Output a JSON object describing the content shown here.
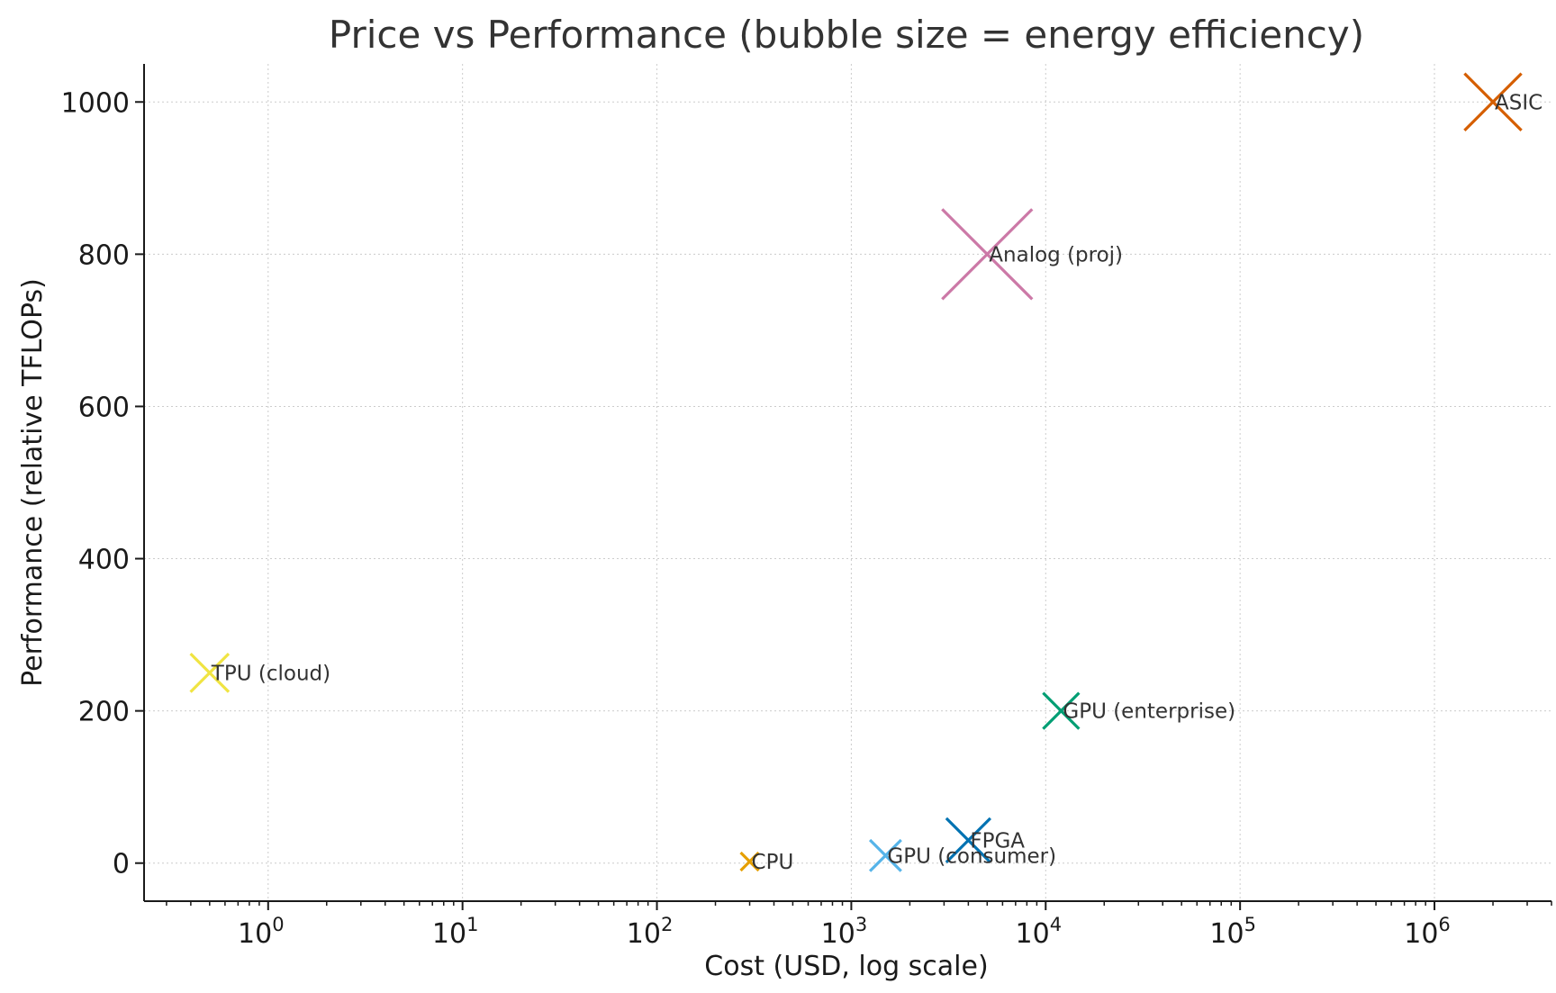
{
  "chart_data": {
    "type": "scatter",
    "title": "Price vs Performance (bubble size = energy efficiency)",
    "xlabel": "Cost (USD, log scale)",
    "ylabel": "Performance (relative TFLOPs)",
    "xscale": "log",
    "xlim": [
      0.23,
      4000000
    ],
    "ylim": [
      -50,
      1050
    ],
    "x_ticks": [
      {
        "base": "10",
        "exp": "0",
        "value": 1
      },
      {
        "base": "10",
        "exp": "1",
        "value": 10
      },
      {
        "base": "10",
        "exp": "2",
        "value": 100
      },
      {
        "base": "10",
        "exp": "3",
        "value": 1000
      },
      {
        "base": "10",
        "exp": "4",
        "value": 10000
      },
      {
        "base": "10",
        "exp": "5",
        "value": 100000
      },
      {
        "base": "10",
        "exp": "6",
        "value": 1000000
      }
    ],
    "y_ticks": [
      {
        "label": "0",
        "value": 0
      },
      {
        "label": "200",
        "value": 200
      },
      {
        "label": "400",
        "value": 400
      },
      {
        "label": "600",
        "value": 600
      },
      {
        "label": "800",
        "value": 800
      },
      {
        "label": "1000",
        "value": 1000
      }
    ],
    "grid": true,
    "marker": "x",
    "points": [
      {
        "name": "CPU",
        "x": 300,
        "y": 2,
        "size": 1,
        "color": "#E69F00"
      },
      {
        "name": "GPU (consumer)",
        "x": 1500,
        "y": 10,
        "size": 3,
        "color": "#56B4E9"
      },
      {
        "name": "GPU (enterprise)",
        "x": 12000,
        "y": 200,
        "size": 4,
        "color": "#009E73"
      },
      {
        "name": "TPU (cloud)",
        "x": 0.5,
        "y": 250,
        "size": 4.5,
        "color": "#F0E442"
      },
      {
        "name": "FPGA",
        "x": 4000,
        "y": 30,
        "size": 6,
        "color": "#0072B2"
      },
      {
        "name": "ASIC",
        "x": 2000000,
        "y": 1000,
        "size": 10,
        "color": "#D55E00"
      },
      {
        "name": "Analog (proj)",
        "x": 5000,
        "y": 800,
        "size": 25,
        "color": "#CC79A7"
      }
    ]
  }
}
